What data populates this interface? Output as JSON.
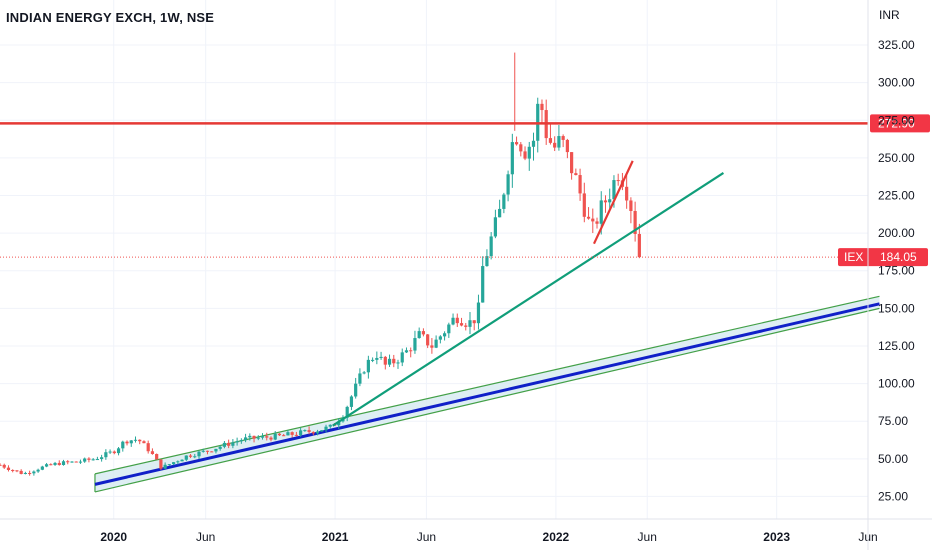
{
  "header": {
    "title": "INDIAN ENERGY EXCH, 1W, NSE",
    "currency": "INR"
  },
  "colors": {
    "up": "#26a69a",
    "down": "#ef5350",
    "horizontal_line": "#e53935",
    "trend_line": "#109e7a",
    "channel_center": "#1020c8",
    "channel_border": "#43a047",
    "channel_fill": "#d6eaf0",
    "wedge": "#e53935",
    "price_label_bg": "#f23645"
  },
  "chart_data": {
    "type": "candlestick",
    "symbol": "IEX",
    "interval": "1W",
    "ylim": [
      10,
      335
    ],
    "y_ticks": [
      "25.00",
      "50.00",
      "75.00",
      "100.00",
      "125.00",
      "150.00",
      "175.00",
      "200.00",
      "225.00",
      "250.00",
      "275.00",
      "300.00",
      "325.00"
    ],
    "x_range": [
      "2019-06-27",
      "2023-06-01"
    ],
    "x_ticks": [
      {
        "date": "2020-01-01",
        "label": "2020",
        "bold": true
      },
      {
        "date": "2020-06-01",
        "label": "Jun",
        "bold": false
      },
      {
        "date": "2021-01-01",
        "label": "2021",
        "bold": true
      },
      {
        "date": "2021-06-01",
        "label": "Jun",
        "bold": false
      },
      {
        "date": "2022-01-01",
        "label": "2022",
        "bold": true
      },
      {
        "date": "2022-06-01",
        "label": "Jun",
        "bold": false
      },
      {
        "date": "2023-01-01",
        "label": "2023",
        "bold": true
      },
      {
        "date": "2023-06-01",
        "label": "Jun",
        "bold": false
      }
    ],
    "start_date": "2019-06-27",
    "close_path": [
      [
        "2019-06-27",
        46
      ],
      [
        "2019-07-15",
        43
      ],
      [
        "2019-08-05",
        40
      ],
      [
        "2019-09-01",
        44
      ],
      [
        "2019-10-01",
        47
      ],
      [
        "2019-11-01",
        48
      ],
      [
        "2019-12-01",
        50
      ],
      [
        "2020-01-01",
        55
      ],
      [
        "2020-01-20",
        62
      ],
      [
        "2020-02-10",
        63
      ],
      [
        "2020-03-01",
        55
      ],
      [
        "2020-03-20",
        44
      ],
      [
        "2020-04-10",
        48
      ],
      [
        "2020-05-01",
        52
      ],
      [
        "2020-06-01",
        55
      ],
      [
        "2020-07-01",
        59
      ],
      [
        "2020-08-01",
        63
      ],
      [
        "2020-09-01",
        64
      ],
      [
        "2020-10-01",
        65
      ],
      [
        "2020-11-01",
        67
      ],
      [
        "2020-12-01",
        69
      ],
      [
        "2020-12-25",
        71
      ],
      [
        "2021-01-15",
        80
      ],
      [
        "2021-02-01",
        95
      ],
      [
        "2021-02-20",
        112
      ],
      [
        "2021-03-10",
        120
      ],
      [
        "2021-03-25",
        112
      ],
      [
        "2021-04-10",
        115
      ],
      [
        "2021-05-01",
        122
      ],
      [
        "2021-05-20",
        132
      ],
      [
        "2021-06-10",
        125
      ],
      [
        "2021-07-01",
        135
      ],
      [
        "2021-07-20",
        145
      ],
      [
        "2021-08-10",
        140
      ],
      [
        "2021-08-25",
        145
      ],
      [
        "2021-09-01",
        176
      ],
      [
        "2021-09-15",
        195
      ],
      [
        "2021-10-01",
        215
      ],
      [
        "2021-10-15",
        248
      ],
      [
        "2021-10-25",
        268
      ],
      [
        "2021-11-10",
        255
      ],
      [
        "2021-11-25",
        262
      ],
      [
        "2021-12-05",
        292
      ],
      [
        "2021-12-15",
        268
      ],
      [
        "2021-12-28",
        256
      ],
      [
        "2022-01-10",
        262
      ],
      [
        "2022-01-20",
        250
      ],
      [
        "2022-02-01",
        238
      ],
      [
        "2022-02-15",
        220
      ],
      [
        "2022-03-01",
        200
      ],
      [
        "2022-03-15",
        215
      ],
      [
        "2022-03-30",
        226
      ],
      [
        "2022-04-15",
        242
      ],
      [
        "2022-04-25",
        233
      ],
      [
        "2022-05-05",
        218
      ],
      [
        "2022-05-15",
        196
      ],
      [
        "2022-05-23",
        184.05
      ]
    ],
    "horizontal_levels": [
      {
        "value": 272.9,
        "label": "272.90"
      }
    ],
    "last_price": {
      "value": 184.05,
      "symbol": "IEX",
      "label": "184.05"
    },
    "trend_line": {
      "from": [
        "2020-12-28",
        72
      ],
      "to": [
        "2022-10-05",
        240
      ]
    },
    "wedge_line": {
      "from": [
        "2022-03-05",
        193
      ],
      "to": [
        "2022-05-08",
        248
      ]
    },
    "channel": {
      "center": {
        "from": [
          "2019-12-01",
          33
        ],
        "to": [
          "2023-06-20",
          153
        ]
      },
      "upper": {
        "from": [
          "2019-12-01",
          40
        ],
        "to": [
          "2023-06-20",
          158
        ]
      },
      "lower": {
        "from": [
          "2019-12-01",
          28
        ],
        "to": [
          "2023-06-20",
          150
        ]
      }
    }
  }
}
